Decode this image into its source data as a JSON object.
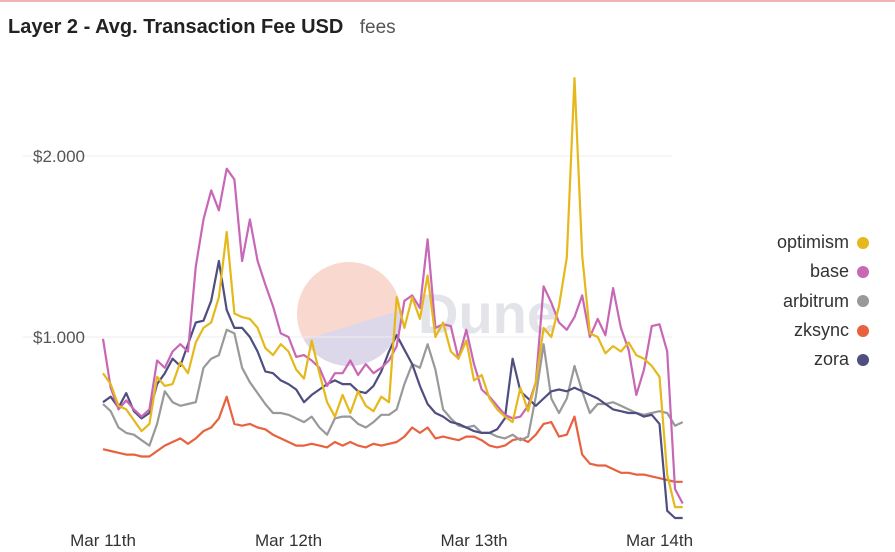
{
  "header": {
    "title": "Layer 2 - Avg. Transaction Fee USD",
    "subtitle": "fees"
  },
  "watermark": {
    "text": "Dune"
  },
  "colors": {
    "optimism": "#e5b81c",
    "base": "#c767b6",
    "arbitrum": "#999999",
    "zksync": "#e8623f",
    "zora": "#4e4e80"
  },
  "chart_data": {
    "type": "line",
    "ylim": [
      0,
      2.45
    ],
    "yticks": [
      1,
      2
    ],
    "ytick_labels": [
      "$1.000",
      "$2.000"
    ],
    "xticks": [
      "Mar 11th",
      "Mar 12th",
      "Mar 13th",
      "Mar 14th"
    ],
    "x_start_hour": 0,
    "x_step_hours": 1,
    "legend_position": "right",
    "series": [
      {
        "name": "optimism",
        "values": [
          0.8,
          0.74,
          0.62,
          0.6,
          0.54,
          0.48,
          0.52,
          0.78,
          0.73,
          0.74,
          0.86,
          0.8,
          0.97,
          1.05,
          1.08,
          1.22,
          1.58,
          1.13,
          1.11,
          1.1,
          1.05,
          0.94,
          0.9,
          0.96,
          0.92,
          0.82,
          0.77,
          0.98,
          0.8,
          0.64,
          0.56,
          0.68,
          0.58,
          0.7,
          0.62,
          0.59,
          0.67,
          0.64,
          1.22,
          1.05,
          1.22,
          1.1,
          1.34,
          1.0,
          1.08,
          0.92,
          0.88,
          0.98,
          0.76,
          0.79,
          0.66,
          0.6,
          0.56,
          0.53,
          0.72,
          0.59,
          0.75,
          1.05,
          1.0,
          1.17,
          1.44,
          2.43,
          1.45,
          1.02,
          1.0,
          0.91,
          0.95,
          0.92,
          0.97,
          0.9,
          0.88,
          0.84,
          0.78,
          0.24,
          0.06,
          0.06
        ]
      },
      {
        "name": "base",
        "values": [
          0.99,
          0.72,
          0.6,
          0.65,
          0.6,
          0.56,
          0.6,
          0.87,
          0.83,
          0.92,
          0.96,
          0.92,
          1.39,
          1.65,
          1.81,
          1.7,
          1.93,
          1.87,
          1.42,
          1.65,
          1.42,
          1.29,
          1.17,
          1.02,
          1.0,
          0.89,
          0.9,
          0.87,
          0.83,
          0.73,
          0.8,
          0.8,
          0.87,
          0.79,
          0.85,
          0.8,
          0.83,
          0.87,
          0.95,
          1.2,
          1.23,
          1.16,
          1.54,
          1.05,
          1.07,
          1.06,
          0.88,
          1.04,
          0.85,
          0.71,
          0.67,
          0.62,
          0.57,
          0.55,
          0.56,
          0.62,
          0.75,
          1.28,
          1.19,
          1.08,
          1.04,
          1.11,
          1.23,
          1.0,
          1.1,
          1.01,
          1.27,
          1.05,
          0.93,
          0.68,
          0.82,
          1.06,
          1.07,
          0.92,
          0.16,
          0.08
        ]
      },
      {
        "name": "arbitrum",
        "values": [
          0.63,
          0.59,
          0.5,
          0.47,
          0.46,
          0.43,
          0.4,
          0.52,
          0.7,
          0.64,
          0.62,
          0.63,
          0.64,
          0.83,
          0.88,
          0.9,
          1.04,
          1.02,
          0.83,
          0.75,
          0.69,
          0.63,
          0.58,
          0.58,
          0.57,
          0.55,
          0.53,
          0.56,
          0.5,
          0.46,
          0.55,
          0.56,
          0.56,
          0.52,
          0.5,
          0.53,
          0.57,
          0.57,
          0.6,
          0.74,
          0.85,
          0.83,
          0.96,
          0.82,
          0.6,
          0.55,
          0.51,
          0.5,
          0.51,
          0.47,
          0.47,
          0.45,
          0.44,
          0.46,
          0.43,
          0.45,
          0.67,
          0.96,
          0.66,
          0.58,
          0.66,
          0.84,
          0.7,
          0.58,
          0.63,
          0.63,
          0.64,
          0.62,
          0.6,
          0.58,
          0.57,
          0.58,
          0.59,
          0.58,
          0.51,
          0.53
        ]
      },
      {
        "name": "zksync",
        "values": [
          0.38,
          0.37,
          0.36,
          0.35,
          0.35,
          0.34,
          0.34,
          0.37,
          0.4,
          0.42,
          0.44,
          0.41,
          0.44,
          0.48,
          0.5,
          0.55,
          0.67,
          0.52,
          0.51,
          0.52,
          0.5,
          0.49,
          0.46,
          0.44,
          0.42,
          0.4,
          0.4,
          0.41,
          0.4,
          0.39,
          0.42,
          0.4,
          0.42,
          0.4,
          0.39,
          0.41,
          0.4,
          0.41,
          0.42,
          0.45,
          0.5,
          0.47,
          0.5,
          0.44,
          0.45,
          0.44,
          0.43,
          0.45,
          0.45,
          0.43,
          0.4,
          0.39,
          0.4,
          0.43,
          0.44,
          0.42,
          0.46,
          0.52,
          0.53,
          0.45,
          0.46,
          0.56,
          0.35,
          0.3,
          0.29,
          0.29,
          0.27,
          0.25,
          0.25,
          0.24,
          0.24,
          0.23,
          0.22,
          0.21,
          0.2,
          0.2
        ]
      },
      {
        "name": "zora",
        "values": [
          0.64,
          0.67,
          0.61,
          0.69,
          0.59,
          0.55,
          0.58,
          0.74,
          0.8,
          0.88,
          0.84,
          0.96,
          1.08,
          1.09,
          1.2,
          1.42,
          1.15,
          1.05,
          1.05,
          1.0,
          0.92,
          0.81,
          0.8,
          0.76,
          0.74,
          0.71,
          0.64,
          0.68,
          0.71,
          0.74,
          0.76,
          0.74,
          0.74,
          0.7,
          0.69,
          0.73,
          0.81,
          0.92,
          1.01,
          0.93,
          0.85,
          0.73,
          0.63,
          0.58,
          0.56,
          0.53,
          0.52,
          0.5,
          0.48,
          0.47,
          0.47,
          0.49,
          0.55,
          0.88,
          0.7,
          0.66,
          0.62,
          0.66,
          0.7,
          0.71,
          0.7,
          0.72,
          0.7,
          0.68,
          0.66,
          0.63,
          0.6,
          0.59,
          0.58,
          0.58,
          0.56,
          0.57,
          0.52,
          0.04,
          0.0,
          0.0
        ]
      }
    ]
  }
}
